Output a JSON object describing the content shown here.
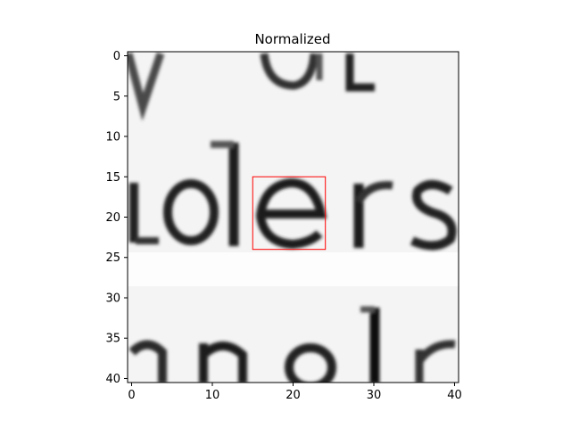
{
  "chart_data": {
    "type": "heatmap",
    "title": "Normalized",
    "xlabel": "",
    "ylabel": "",
    "colormap": "gray",
    "xlim": [
      -0.5,
      40.5
    ],
    "ylim": [
      40.5,
      -0.5
    ],
    "x_ticks": [
      0,
      10,
      20,
      30,
      40
    ],
    "y_ticks": [
      0,
      5,
      10,
      15,
      20,
      25,
      30,
      35,
      40
    ],
    "grid": false,
    "legend": "none",
    "image_content": "grayscale crop of printed text",
    "visible_glyphs": [
      "o",
      "l",
      "d",
      "e",
      "r",
      "s",
      "n",
      "l"
    ],
    "highlight_box": {
      "x": [
        15,
        24
      ],
      "y": [
        15,
        24
      ],
      "color": "#ff0000"
    }
  }
}
